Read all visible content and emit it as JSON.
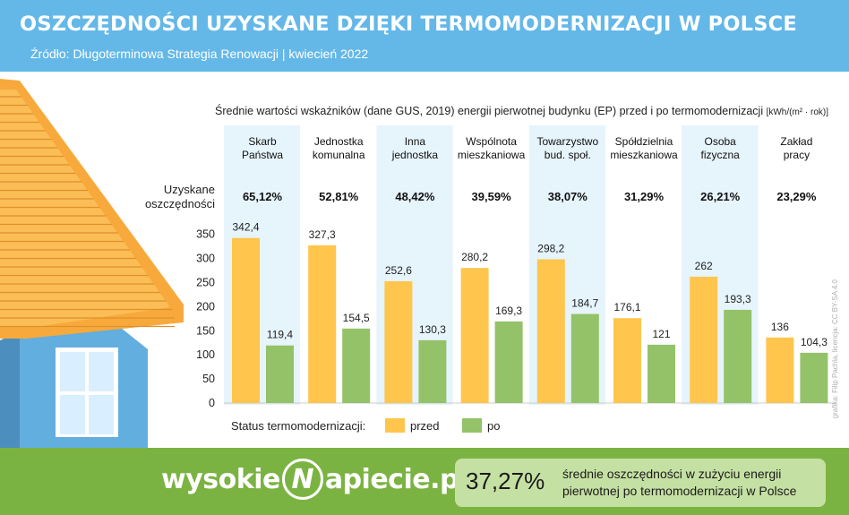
{
  "header": {
    "title": "OSZCZĘDNOŚCI UZYSKANE DZIĘKI TERMOMODERNIZACJI W POLSCE",
    "subtitle": "Źródło: Długoterminowa Strategia Renowacji | kwiecień 2022"
  },
  "note": {
    "text": "Średnie wartości wskaźników (dane GUS, 2019) energii pierwotnej budynku (EP) przed i po termomodernizacji",
    "unit": "[kWh/(m² · rok)]"
  },
  "savings_label": "Uzyskane oszczędności",
  "credit": "grafika: Filip Pachla, licencja: CC BY-SA 4.0",
  "chart_data": {
    "type": "bar",
    "categories": [
      "Skarb Państwa",
      "Jednostka komunalna",
      "Inna jednostka",
      "Wspólnota mieszkaniowa",
      "Towarzystwo bud. społ.",
      "Spółdzielnia mieszkaniowa",
      "Osoba fizyczna",
      "Zakład pracy"
    ],
    "series": [
      {
        "name": "przed",
        "color": "#ffc54d",
        "values": [
          342.4,
          327.3,
          252.6,
          280.2,
          298.2,
          176.1,
          262,
          136
        ],
        "labels": [
          "342,4",
          "327,3",
          "252,6",
          "280,2",
          "298,2",
          "176,1",
          "262",
          "136"
        ]
      },
      {
        "name": "po",
        "color": "#94c269",
        "values": [
          119.4,
          154.5,
          130.3,
          169.3,
          184.7,
          121,
          193.3,
          104.3
        ],
        "labels": [
          "119,4",
          "154,5",
          "130,3",
          "169,3",
          "184,7",
          "121",
          "193,3",
          "104,3"
        ]
      }
    ],
    "savings": [
      "65,12%",
      "52,81%",
      "48,42%",
      "39,59%",
      "38,07%",
      "31,29%",
      "26,21%",
      "23,29%"
    ],
    "ylim": [
      0,
      360
    ],
    "yticks": [
      0,
      50,
      100,
      150,
      200,
      250,
      300,
      350
    ],
    "legend": {
      "title": "Status termomodernizacji:",
      "placement": "bottom-left"
    }
  },
  "footer": {
    "logo_left": "wysokie",
    "logo_mark": "N",
    "logo_right": "apiecie.pl",
    "summary_value": "37,27%",
    "summary_text": "średnie oszczędności w zużyciu energii pierwotnej po termomodernizacji w Polsce"
  },
  "colors": {
    "header": "#64b8e8",
    "column_shade": "#e6f4fc",
    "footer": "#7bb342",
    "roof": "#f8a93c",
    "wall": "#62aedf"
  }
}
